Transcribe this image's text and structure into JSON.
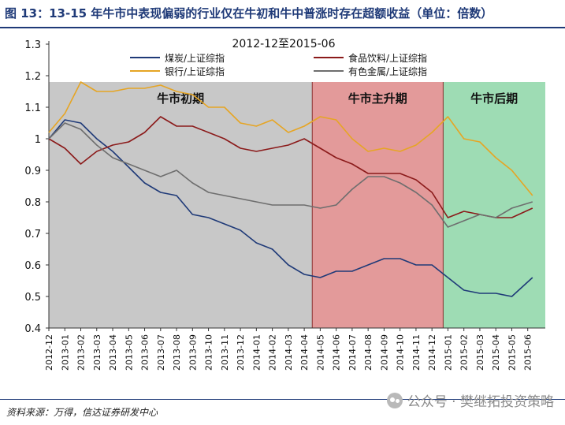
{
  "figure": {
    "title": "图 13：13-15 年牛市中表现偏弱的行业仅在牛初和牛中普涨时存在超额收益（单位：倍数）",
    "source": "资料来源：万得，信达证券研发中心",
    "watermark": "公众号 · 樊继拓投资策略"
  },
  "chart_data": {
    "type": "line",
    "title": "2012-12至2015-06",
    "ylim": [
      0.4,
      1.3
    ],
    "yticks": [
      "0.4",
      "0.5",
      "0.6",
      "0.7",
      "0.8",
      "0.9",
      "1",
      "1.1",
      "1.2",
      "1.3"
    ],
    "xtick_labels": [
      "2012-12",
      "2013-01",
      "2013-02",
      "2013-03",
      "2013-04",
      "2013-05",
      "2013-06",
      "2013-07",
      "2013-08",
      "2013-09",
      "2013-10",
      "2013-11",
      "2013-12",
      "2014-01",
      "2014-02",
      "2014-03",
      "2014-04",
      "2014-05",
      "2014-06",
      "2014-07",
      "2014-08",
      "2014-09",
      "2014-10",
      "2014-11",
      "2014-12",
      "2015-01",
      "2015-02",
      "2015-03",
      "2015-04",
      "2015-05",
      "2015-06"
    ],
    "phases": [
      {
        "label": "牛市初期",
        "start": 0,
        "end": 16.5,
        "color": "#c8c8c8"
      },
      {
        "label": "牛市主升期",
        "start": 16.5,
        "end": 24.7,
        "color": "#e39a9a"
      },
      {
        "label": "牛市后期",
        "start": 24.7,
        "end": 31.1,
        "color": "#9edcb4"
      }
    ],
    "series": [
      {
        "name": "煤炭/上证综指",
        "color": "#1f3a78",
        "x": [
          0,
          1,
          2,
          3,
          4,
          5,
          6,
          7,
          8,
          9,
          10,
          11,
          12,
          13,
          14,
          15,
          16,
          17,
          18,
          19,
          20,
          21,
          22,
          23,
          24,
          25,
          26,
          27,
          28,
          29,
          30.3
        ],
        "y": [
          1.0,
          1.06,
          1.05,
          1.0,
          0.96,
          0.91,
          0.86,
          0.83,
          0.82,
          0.76,
          0.75,
          0.73,
          0.71,
          0.67,
          0.65,
          0.6,
          0.57,
          0.56,
          0.58,
          0.58,
          0.6,
          0.62,
          0.62,
          0.6,
          0.6,
          0.56,
          0.52,
          0.51,
          0.51,
          0.5,
          0.56
        ]
      },
      {
        "name": "食品饮料/上证综指",
        "color": "#8b1a1a",
        "x": [
          0,
          1,
          2,
          3,
          4,
          5,
          6,
          7,
          8,
          9,
          10,
          11,
          12,
          13,
          14,
          15,
          16,
          17,
          18,
          19,
          20,
          21,
          22,
          23,
          24,
          25,
          26,
          27,
          28,
          29,
          30.3
        ],
        "y": [
          1.0,
          0.97,
          0.92,
          0.96,
          0.98,
          0.99,
          1.02,
          1.07,
          1.04,
          1.04,
          1.02,
          1.0,
          0.97,
          0.96,
          0.97,
          0.98,
          1.0,
          0.97,
          0.94,
          0.92,
          0.89,
          0.89,
          0.89,
          0.87,
          0.83,
          0.75,
          0.77,
          0.76,
          0.75,
          0.75,
          0.78
        ]
      },
      {
        "name": "银行/上证综指",
        "color": "#e6a524",
        "x": [
          0,
          1,
          2,
          3,
          4,
          5,
          6,
          7,
          8,
          9,
          10,
          11,
          12,
          13,
          14,
          15,
          16,
          17,
          18,
          19,
          20,
          21,
          22,
          23,
          24,
          25,
          26,
          27,
          28,
          29,
          30.3
        ],
        "y": [
          1.02,
          1.08,
          1.18,
          1.15,
          1.15,
          1.16,
          1.16,
          1.17,
          1.15,
          1.14,
          1.1,
          1.1,
          1.05,
          1.04,
          1.06,
          1.02,
          1.04,
          1.07,
          1.06,
          1.0,
          0.96,
          0.97,
          0.96,
          0.98,
          1.02,
          1.07,
          1.0,
          0.99,
          0.94,
          0.9,
          0.82
        ]
      },
      {
        "name": "有色金属/上证综指",
        "color": "#6e6e6e",
        "x": [
          0,
          1,
          2,
          3,
          4,
          5,
          6,
          7,
          8,
          9,
          10,
          11,
          12,
          13,
          14,
          15,
          16,
          17,
          18,
          19,
          20,
          21,
          22,
          23,
          24,
          25,
          26,
          27,
          28,
          29,
          30.3
        ],
        "y": [
          1.0,
          1.05,
          1.03,
          0.98,
          0.94,
          0.92,
          0.9,
          0.88,
          0.9,
          0.86,
          0.83,
          0.82,
          0.81,
          0.8,
          0.79,
          0.79,
          0.79,
          0.78,
          0.79,
          0.84,
          0.88,
          0.88,
          0.86,
          0.83,
          0.79,
          0.72,
          0.74,
          0.76,
          0.75,
          0.78,
          0.8
        ]
      }
    ]
  }
}
